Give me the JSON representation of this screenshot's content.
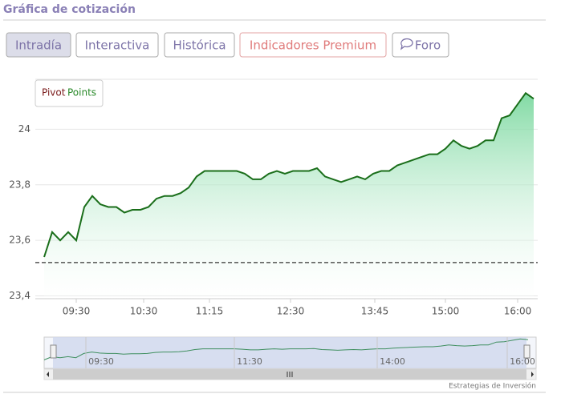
{
  "header": {
    "title": "Gráfica de cotización",
    "tabs": [
      "Intradía",
      "Interactiva",
      "Histórica",
      "Indicadores Premium",
      "Foro"
    ]
  },
  "chart_data": {
    "type": "line",
    "legend": {
      "pivot": "Pivot",
      "points": "Points"
    },
    "pivot": 23.52,
    "x": [
      0,
      1,
      2,
      3,
      4,
      5,
      6,
      7,
      8,
      9,
      10,
      11,
      12,
      13,
      14,
      15,
      16,
      17,
      18,
      19,
      20,
      21,
      22,
      23,
      24,
      25,
      26,
      27,
      28,
      29,
      30,
      31,
      32,
      33,
      34,
      35,
      36,
      37,
      38,
      39,
      40,
      41,
      42,
      43,
      44,
      45,
      46,
      47,
      48,
      49,
      50,
      51,
      52,
      53,
      54,
      55,
      56,
      57,
      58,
      59,
      60,
      61
    ],
    "series": [
      {
        "color": "#1a6e1a",
        "values": [
          23.54,
          23.63,
          23.6,
          23.63,
          23.6,
          23.72,
          23.76,
          23.73,
          23.72,
          23.72,
          23.7,
          23.71,
          23.71,
          23.72,
          23.75,
          23.76,
          23.76,
          23.77,
          23.79,
          23.83,
          23.85,
          23.85,
          23.85,
          23.85,
          23.85,
          23.84,
          23.82,
          23.82,
          23.84,
          23.85,
          23.84,
          23.85,
          23.85,
          23.85,
          23.86,
          23.83,
          23.82,
          23.81,
          23.82,
          23.83,
          23.82,
          23.84,
          23.85,
          23.85,
          23.87,
          23.88,
          23.89,
          23.9,
          23.91,
          23.91,
          23.93,
          23.96,
          23.94,
          23.93,
          23.94,
          23.96,
          23.96,
          24.04,
          24.05,
          24.09,
          24.13,
          24.11
        ]
      }
    ],
    "xlim": [
      0,
      61
    ],
    "xticks": [
      {
        "value": 4,
        "label": "09:30"
      },
      {
        "value": 12.4,
        "label": "10:30"
      },
      {
        "value": 20.6,
        "label": "11:15"
      },
      {
        "value": 30.7,
        "label": "12:30"
      },
      {
        "value": 41.2,
        "label": "13:45"
      },
      {
        "value": 50,
        "label": "15:00"
      },
      {
        "value": 59,
        "label": "16:00"
      }
    ],
    "ylim": [
      23.39,
      24.18
    ],
    "yticks": [
      {
        "value": 23.4,
        "label": "23,4"
      },
      {
        "value": 23.6,
        "label": "23,6"
      },
      {
        "value": 23.8,
        "label": "23,8"
      },
      24
    ],
    "grid": true,
    "navigator_labels": [
      "09:30",
      "11:30",
      "14:00",
      "16:00"
    ],
    "credit": "Estrategias de Inversión"
  }
}
